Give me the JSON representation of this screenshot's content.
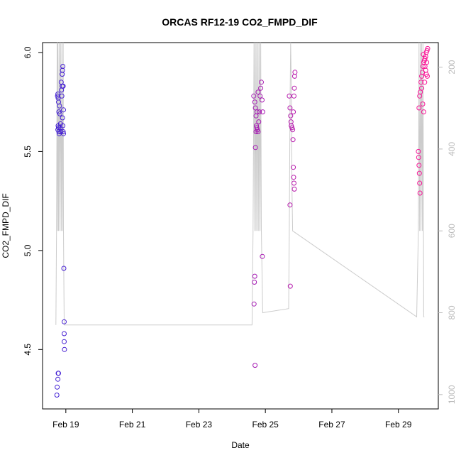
{
  "chart_data": {
    "type": "scatter",
    "title": "ORCAS RF12-19 CO2_FMPD_DIF",
    "xlabel": "Date",
    "ylabel": "CO2_FMPD_DIF",
    "x_ticks": [
      "Feb 19",
      "Feb 21",
      "Feb 23",
      "Feb 25",
      "Feb 27",
      "Feb 29"
    ],
    "x_tick_days": [
      19,
      21,
      23,
      25,
      27,
      29
    ],
    "xlim_days": [
      18.3,
      30.2
    ],
    "y_ticks": [
      "4.5",
      "5.0",
      "5.5",
      "6.0"
    ],
    "y_tick_values": [
      4.5,
      5.0,
      5.5,
      6.0
    ],
    "ylim": [
      4.2,
      6.05
    ],
    "y2_ticks": [
      "200",
      "400",
      "600",
      "800",
      "1000"
    ],
    "y2_tick_values": [
      200,
      400,
      600,
      800,
      1000
    ],
    "y2lim": [
      1035,
      140
    ],
    "y2_reversed": true,
    "series": [
      {
        "type": "points",
        "color_start": "#3a1fd6",
        "color_end": "#ff1493",
        "points": [
          [
            18.75,
            5.78
          ],
          [
            18.76,
            5.79
          ],
          [
            18.77,
            5.77
          ],
          [
            18.78,
            5.75
          ],
          [
            18.79,
            5.7
          ],
          [
            18.77,
            5.63
          ],
          [
            18.78,
            5.62
          ],
          [
            18.79,
            5.6
          ],
          [
            18.8,
            5.59
          ],
          [
            18.76,
            5.61
          ],
          [
            18.81,
            5.73
          ],
          [
            18.82,
            5.69
          ],
          [
            18.83,
            5.62
          ],
          [
            18.84,
            5.64
          ],
          [
            18.85,
            5.6
          ],
          [
            18.86,
            5.85
          ],
          [
            18.87,
            5.81
          ],
          [
            18.88,
            5.78
          ],
          [
            18.89,
            5.83
          ],
          [
            18.9,
            5.91
          ],
          [
            18.91,
            5.93
          ],
          [
            18.92,
            5.83
          ],
          [
            18.93,
            5.71
          ],
          [
            18.9,
            5.67
          ],
          [
            18.91,
            5.63
          ],
          [
            18.92,
            5.6
          ],
          [
            18.93,
            5.59
          ],
          [
            18.89,
            5.89
          ],
          [
            18.94,
            4.91
          ],
          [
            18.95,
            4.64
          ],
          [
            18.95,
            4.58
          ],
          [
            18.95,
            4.54
          ],
          [
            18.96,
            4.5
          ],
          [
            18.77,
            4.38
          ],
          [
            18.78,
            4.38
          ],
          [
            18.76,
            4.35
          ],
          [
            18.74,
            4.31
          ],
          [
            18.73,
            4.27
          ],
          [
            24.65,
            5.78
          ],
          [
            24.68,
            5.75
          ],
          [
            24.7,
            5.72
          ],
          [
            24.72,
            5.68
          ],
          [
            24.73,
            5.63
          ],
          [
            24.74,
            5.62
          ],
          [
            24.76,
            5.61
          ],
          [
            24.78,
            5.6
          ],
          [
            24.8,
            5.65
          ],
          [
            24.82,
            5.7
          ],
          [
            24.84,
            5.78
          ],
          [
            24.86,
            5.82
          ],
          [
            24.88,
            5.85
          ],
          [
            24.9,
            5.76
          ],
          [
            24.92,
            5.7
          ],
          [
            24.7,
            5.52
          ],
          [
            24.72,
            5.6
          ],
          [
            24.75,
            5.7
          ],
          [
            24.78,
            5.8
          ],
          [
            24.91,
            4.97
          ],
          [
            24.68,
            4.87
          ],
          [
            24.67,
            4.84
          ],
          [
            24.66,
            4.73
          ],
          [
            24.69,
            4.42
          ],
          [
            25.72,
            5.78
          ],
          [
            25.74,
            5.72
          ],
          [
            25.76,
            5.68
          ],
          [
            25.77,
            5.65
          ],
          [
            25.78,
            5.63
          ],
          [
            25.8,
            5.62
          ],
          [
            25.82,
            5.61
          ],
          [
            25.84,
            5.7
          ],
          [
            25.86,
            5.78
          ],
          [
            25.87,
            5.82
          ],
          [
            25.88,
            5.88
          ],
          [
            25.89,
            5.9
          ],
          [
            25.83,
            5.56
          ],
          [
            25.84,
            5.42
          ],
          [
            25.85,
            5.37
          ],
          [
            25.86,
            5.34
          ],
          [
            25.87,
            5.31
          ],
          [
            25.74,
            5.23
          ],
          [
            25.75,
            4.82
          ],
          [
            29.6,
            5.5
          ],
          [
            29.61,
            5.47
          ],
          [
            29.62,
            5.43
          ],
          [
            29.63,
            5.39
          ],
          [
            29.64,
            5.34
          ],
          [
            29.65,
            5.29
          ],
          [
            29.62,
            5.72
          ],
          [
            29.64,
            5.78
          ],
          [
            29.66,
            5.8
          ],
          [
            29.68,
            5.85
          ],
          [
            29.7,
            5.88
          ],
          [
            29.72,
            5.9
          ],
          [
            29.74,
            5.93
          ],
          [
            29.76,
            5.95
          ],
          [
            29.78,
            5.96
          ],
          [
            29.8,
            5.97
          ],
          [
            29.82,
            5.98
          ],
          [
            29.84,
            6.0
          ],
          [
            29.86,
            6.01
          ],
          [
            29.88,
            6.02
          ],
          [
            29.7,
            5.82
          ],
          [
            29.73,
            5.74
          ],
          [
            29.76,
            5.7
          ],
          [
            29.79,
            5.85
          ],
          [
            29.82,
            5.91
          ],
          [
            29.85,
            5.95
          ],
          [
            29.87,
            5.88
          ],
          [
            29.75,
            5.99
          ],
          [
            29.8,
            5.93
          ],
          [
            29.84,
            5.89
          ]
        ]
      },
      {
        "type": "line",
        "color": "#cccccc",
        "axis": "y2",
        "points": [
          [
            18.7,
            830
          ],
          [
            18.72,
            600
          ],
          [
            18.74,
            140
          ],
          [
            18.75,
            600
          ],
          [
            18.76,
            140
          ],
          [
            18.78,
            600
          ],
          [
            18.8,
            140
          ],
          [
            18.82,
            600
          ],
          [
            18.84,
            140
          ],
          [
            18.86,
            600
          ],
          [
            18.88,
            140
          ],
          [
            18.9,
            600
          ],
          [
            18.92,
            140
          ],
          [
            18.93,
            600
          ],
          [
            18.95,
            830
          ],
          [
            24.6,
            830
          ],
          [
            24.63,
            600
          ],
          [
            24.66,
            140
          ],
          [
            24.68,
            600
          ],
          [
            24.7,
            140
          ],
          [
            24.72,
            600
          ],
          [
            24.74,
            140
          ],
          [
            24.76,
            600
          ],
          [
            24.78,
            140
          ],
          [
            24.8,
            600
          ],
          [
            24.82,
            140
          ],
          [
            24.84,
            600
          ],
          [
            24.86,
            140
          ],
          [
            24.88,
            600
          ],
          [
            24.92,
            800
          ],
          [
            25.7,
            790
          ],
          [
            25.72,
            600
          ],
          [
            25.74,
            300
          ],
          [
            25.76,
            140
          ],
          [
            25.78,
            240
          ],
          [
            25.8,
            500
          ],
          [
            25.82,
            600
          ],
          [
            29.55,
            810
          ],
          [
            29.6,
            600
          ],
          [
            29.62,
            140
          ],
          [
            29.64,
            600
          ],
          [
            29.66,
            140
          ],
          [
            29.68,
            600
          ],
          [
            29.7,
            140
          ],
          [
            29.72,
            600
          ],
          [
            29.74,
            140
          ],
          [
            29.76,
            810
          ],
          [
            29.78,
            810
          ]
        ]
      }
    ]
  }
}
